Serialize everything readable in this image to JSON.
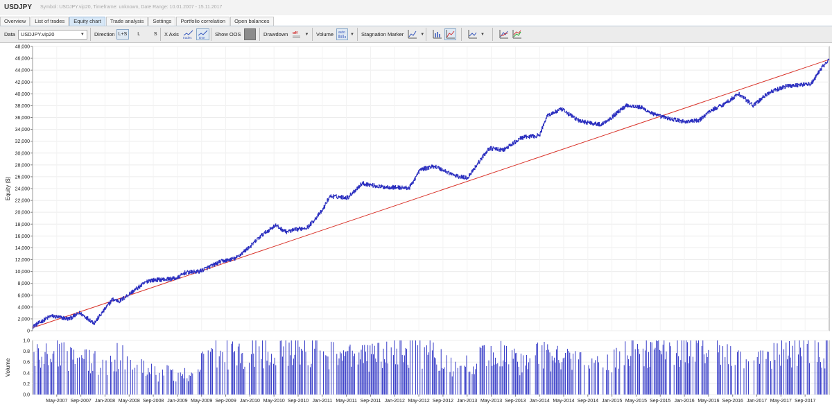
{
  "window": {
    "app_title": "USDJPY",
    "info": "Symbol: USDJPY.vip20, Timeframe: unknown, Date Range: 10.01.2007 - 15.11.2017"
  },
  "tabs": [
    {
      "label": "Overview"
    },
    {
      "label": "List of trades"
    },
    {
      "label": "Equity chart",
      "active": true
    },
    {
      "label": "Trade analysis"
    },
    {
      "label": "Settings"
    },
    {
      "label": "Portfolio correlation"
    },
    {
      "label": "Open balances"
    }
  ],
  "toolbar": {
    "data_label": "Data",
    "data_value": "USDJPY.vip20",
    "direction_label": "Direction",
    "direction_options": [
      "L+S",
      "L",
      "S"
    ],
    "direction_selected": "L+S",
    "xaxis_label": "X Axis",
    "xaxis_trades": "trades",
    "xaxis_time": "time",
    "show_oos_label": "Show OOS",
    "drawdown_label": "Drawdown",
    "drawdown_off": "off",
    "volume_label": "Volume",
    "volume_auto": "auto",
    "stagnation_label": "Stagnation Marker"
  },
  "accent_colors": {
    "equity_line": "#2b2fbf",
    "trend_line": "#d9342b",
    "volume_bars": "#1c22c0",
    "active_tab": "#d7e7f6"
  },
  "chart_data": [
    {
      "type": "line",
      "ylabel": "Equity ($)",
      "ylim": [
        0,
        48000
      ],
      "yticks": [
        "0",
        "2,000",
        "4,000",
        "6,000",
        "8,000",
        "10,000",
        "12,000",
        "14,000",
        "16,000",
        "18,000",
        "20,000",
        "22,000",
        "24,000",
        "26,000",
        "28,000",
        "30,000",
        "32,000",
        "34,000",
        "36,000",
        "38,000",
        "40,000",
        "42,000",
        "44,000",
        "46,000",
        "48,000"
      ],
      "grid": true,
      "series": [
        {
          "values": [
            [
              2007.0,
              700
            ],
            [
              2007.25,
              2500
            ],
            [
              2007.5,
              2000
            ],
            [
              2007.65,
              3000
            ],
            [
              2007.85,
              1300
            ],
            [
              2008.1,
              5300
            ],
            [
              2008.2,
              5000
            ],
            [
              2008.4,
              6800
            ],
            [
              2008.6,
              8500
            ],
            [
              2008.85,
              8700
            ],
            [
              2009.0,
              8900
            ],
            [
              2009.1,
              9800
            ],
            [
              2009.3,
              10000
            ],
            [
              2009.6,
              11700
            ],
            [
              2009.8,
              12200
            ],
            [
              2010.0,
              14200
            ],
            [
              2010.15,
              16000
            ],
            [
              2010.35,
              17800
            ],
            [
              2010.5,
              16700
            ],
            [
              2010.8,
              17500
            ],
            [
              2011.0,
              20300
            ],
            [
              2011.1,
              22700
            ],
            [
              2011.35,
              22500
            ],
            [
              2011.55,
              24900
            ],
            [
              2011.8,
              24300
            ],
            [
              2012.2,
              24100
            ],
            [
              2012.35,
              27200
            ],
            [
              2012.55,
              27800
            ],
            [
              2012.65,
              27200
            ],
            [
              2012.85,
              26100
            ],
            [
              2013.0,
              25800
            ],
            [
              2013.3,
              30800
            ],
            [
              2013.5,
              30500
            ],
            [
              2013.75,
              32600
            ],
            [
              2014.0,
              33000
            ],
            [
              2014.1,
              36300
            ],
            [
              2014.3,
              37400
            ],
            [
              2014.55,
              35400
            ],
            [
              2014.85,
              34800
            ],
            [
              2015.0,
              36100
            ],
            [
              2015.2,
              38100
            ],
            [
              2015.4,
              37700
            ],
            [
              2015.6,
              36400
            ],
            [
              2015.8,
              35800
            ],
            [
              2016.0,
              35300
            ],
            [
              2016.2,
              35500
            ],
            [
              2016.35,
              37100
            ],
            [
              2016.55,
              38300
            ],
            [
              2016.75,
              40000
            ],
            [
              2016.95,
              38000
            ],
            [
              2017.15,
              40100
            ],
            [
              2017.4,
              41300
            ],
            [
              2017.75,
              41700
            ],
            [
              2017.9,
              44500
            ],
            [
              2018.0,
              45800
            ]
          ]
        },
        {
          "values": [
            [
              2007.0,
              500
            ],
            [
              2018.0,
              45800
            ]
          ]
        }
      ]
    },
    {
      "type": "bar",
      "ylabel": "Volume",
      "ylim": [
        0,
        1.0
      ],
      "yticks": [
        "0.0",
        "0.2",
        "0.4",
        "0.6",
        "0.8",
        "1.0"
      ],
      "xticks": [
        "May-2007",
        "Sep-2007",
        "Jan-2008",
        "May-2008",
        "Sep-2008",
        "Jan-2009",
        "May-2009",
        "Sep-2009",
        "Jan-2010",
        "May-2010",
        "Sep-2010",
        "Jan-2011",
        "May-2011",
        "Sep-2011",
        "Jan-2012",
        "May-2012",
        "Sep-2012",
        "Jan-2013",
        "May-2013",
        "Sep-2013",
        "Jan-2014",
        "May-2014",
        "Sep-2014",
        "Jan-2015",
        "May-2015",
        "Sep-2015",
        "Jan-2016",
        "May-2016",
        "Sep-2016",
        "Jan-2017",
        "May-2017",
        "Sep-2017"
      ],
      "values": [
        [
          2007.0,
          0.9
        ],
        [
          2007.2,
          1.0
        ],
        [
          2007.4,
          1.0
        ],
        [
          2007.6,
          0.8
        ],
        [
          2007.8,
          0.85
        ],
        [
          2008.0,
          0.7
        ],
        [
          2008.2,
          1.0
        ],
        [
          2008.4,
          0.6
        ],
        [
          2008.6,
          0.7
        ],
        [
          2008.75,
          0.4
        ],
        [
          2008.9,
          0.6
        ],
        [
          2009.05,
          0.45
        ],
        [
          2009.25,
          0.6
        ],
        [
          2009.45,
          1.0
        ],
        [
          2009.7,
          1.0
        ],
        [
          2010.0,
          1.0
        ],
        [
          2010.5,
          1.0
        ],
        [
          2011.0,
          1.0
        ],
        [
          2011.5,
          0.9
        ],
        [
          2012.0,
          1.0
        ],
        [
          2012.5,
          1.0
        ],
        [
          2012.85,
          0.6
        ],
        [
          2013.2,
          0.9
        ],
        [
          2013.5,
          1.0
        ],
        [
          2013.8,
          0.7
        ],
        [
          2014.0,
          1.0
        ],
        [
          2014.5,
          0.8
        ],
        [
          2014.9,
          0.7
        ],
        [
          2015.2,
          1.0
        ],
        [
          2015.6,
          1.0
        ],
        [
          2016.0,
          1.0
        ],
        [
          2016.5,
          1.0
        ],
        [
          2016.9,
          0.7
        ],
        [
          2017.3,
          1.0
        ],
        [
          2017.7,
          1.0
        ],
        [
          2017.95,
          1.0
        ]
      ]
    }
  ]
}
